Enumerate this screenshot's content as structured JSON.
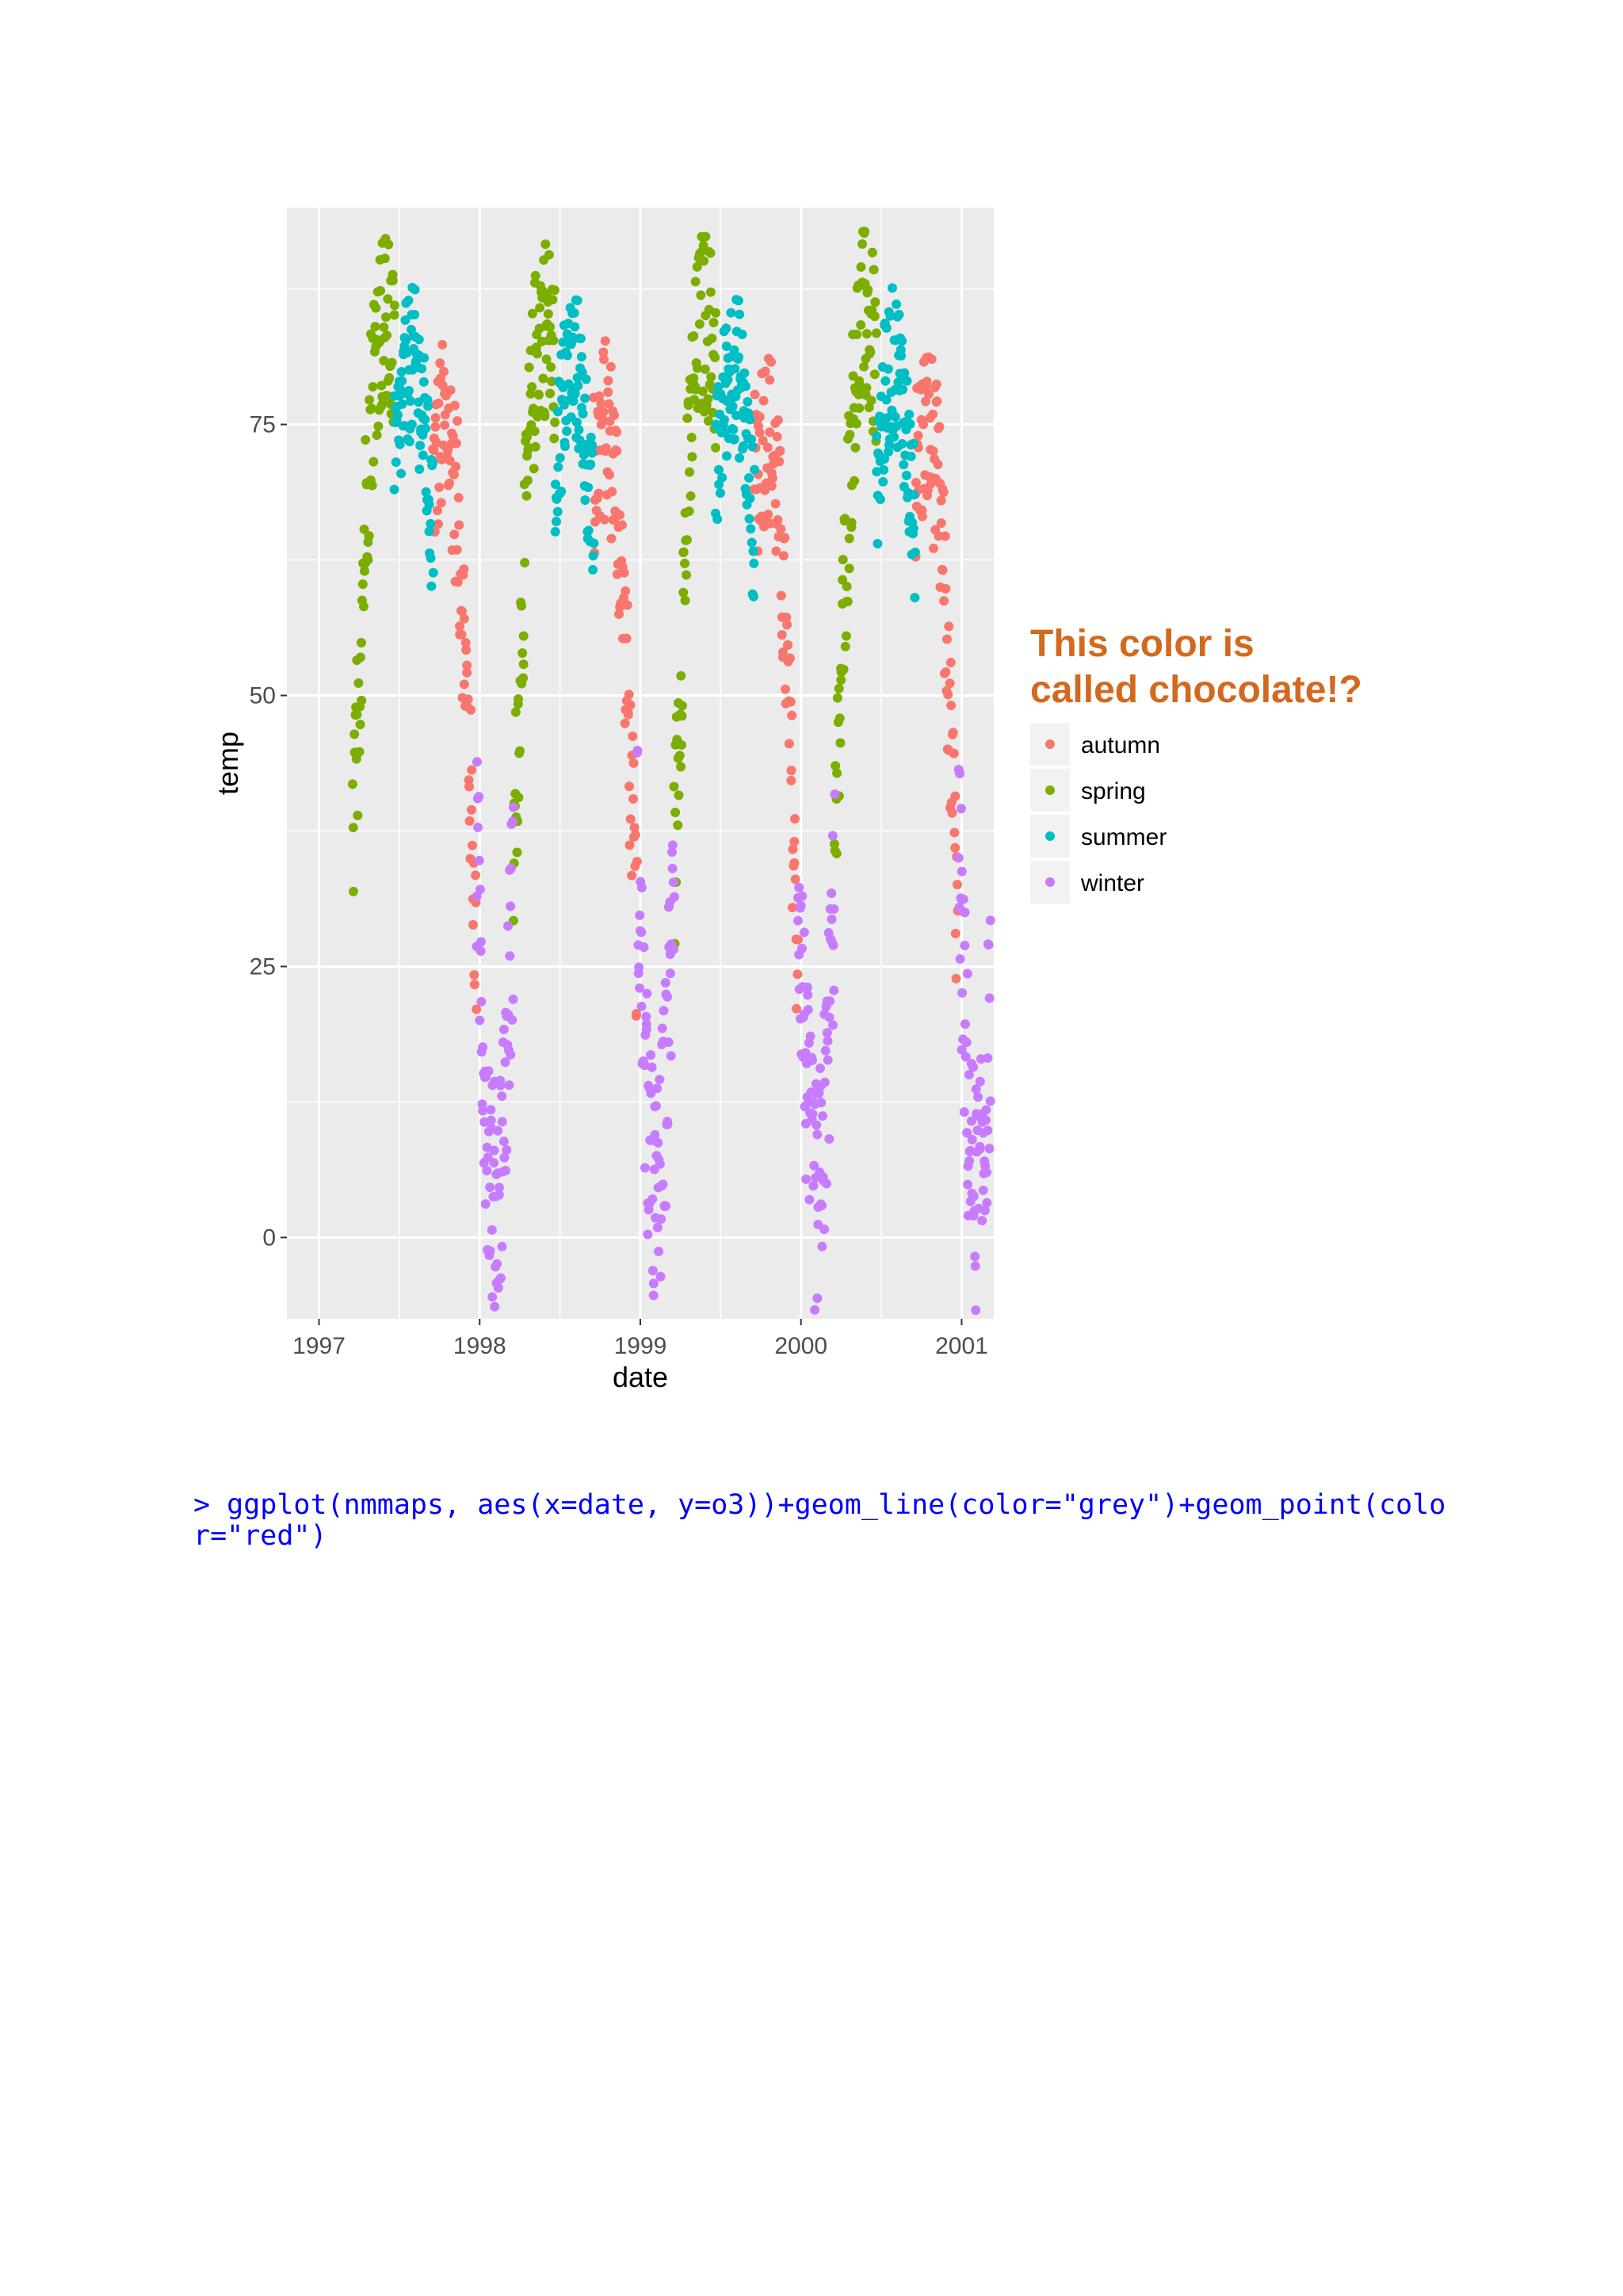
{
  "chart_data": {
    "type": "scatter",
    "title": "",
    "xlabel": "date",
    "ylabel": "temp",
    "x_ticks": [
      "1997",
      "1998",
      "1999",
      "2000",
      "2001"
    ],
    "y_ticks": [
      "0",
      "25",
      "50",
      "75"
    ],
    "xlim": [
      1996.8,
      2001.2
    ],
    "ylim": [
      -7.5,
      95
    ],
    "grid": true,
    "legend_position": "right",
    "legend_title": "This color is called chocolate!?",
    "legend_title_lines": [
      "This color is",
      "called chocolate!?"
    ],
    "legend_title_color": "#d2691e",
    "series": [
      {
        "name": "autumn",
        "color": "#f8766d",
        "x_start": 1997.71,
        "x_end": 1997.98,
        "y_start": 70,
        "y_end": 26,
        "y_peak": 72,
        "spread": 11
      },
      {
        "name": "spring",
        "color": "#7cae00",
        "x_start": 1997.21,
        "x_end": 1997.47,
        "y_start": 34,
        "y_end": 80,
        "y_peak": 82,
        "spread": 11
      },
      {
        "name": "summer",
        "color": "#00bfc4",
        "x_start": 1997.47,
        "x_end": 1997.71,
        "y_start": 70,
        "y_end": 64,
        "y_peak": 82,
        "spread": 9
      },
      {
        "name": "winter",
        "color": "#c77cff",
        "x_start": 1997.98,
        "x_end": 1998.21,
        "y_start": 36,
        "y_end": 34,
        "y_peak": 0,
        "spread": 14
      }
    ],
    "years": [
      1997,
      1998,
      1999,
      2000
    ]
  },
  "console": {
    "command": "> ggplot(nmmaps, aes(x=date, y=o3))+geom_line(color=\"grey\")+geom_point(color=\"red\")"
  }
}
